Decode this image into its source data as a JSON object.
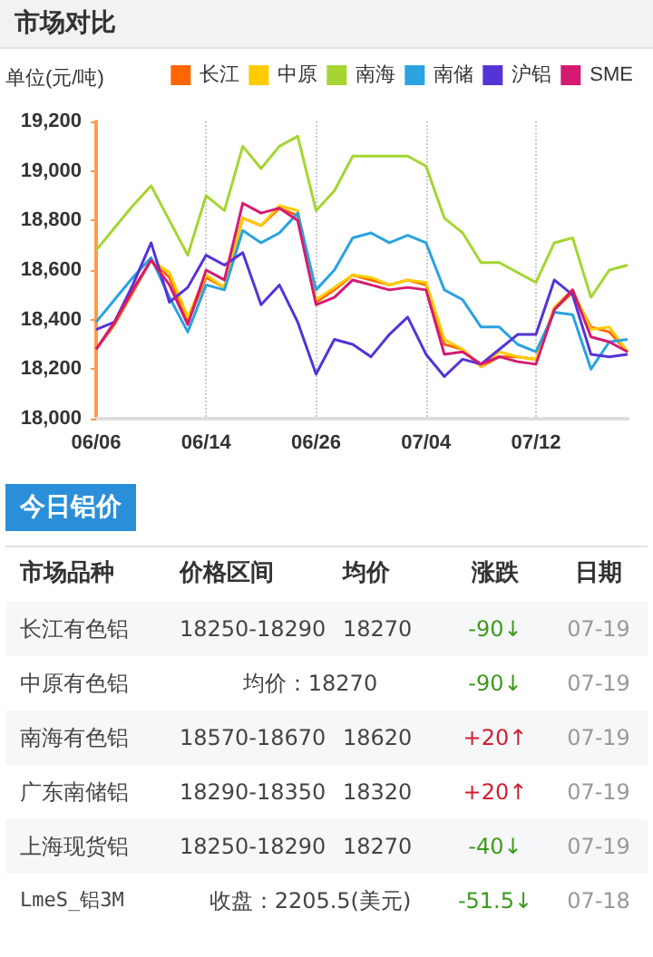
{
  "chart_data": {
    "type": "line",
    "title": "市场对比",
    "ylabel": "单位(元/吨)",
    "categories": [
      "06/06",
      null,
      null,
      null,
      null,
      null,
      "06/14",
      null,
      null,
      null,
      null,
      null,
      "06/26",
      null,
      null,
      null,
      null,
      null,
      "07/04",
      null,
      null,
      null,
      null,
      null,
      "07/12",
      null,
      null,
      null,
      null,
      null
    ],
    "series": [
      {
        "name": "长江",
        "color": "#ff6600",
        "values": [
          18280,
          18380,
          18510,
          18640,
          18570,
          18390,
          18570,
          18530,
          18810,
          18780,
          18850,
          18820,
          18470,
          18520,
          18580,
          18560,
          18540,
          18560,
          18540,
          18300,
          18280,
          18210,
          18250,
          18250,
          18240,
          18440,
          18510,
          18370,
          18350,
          18270
        ]
      },
      {
        "name": "中原",
        "color": "#ffcc00",
        "values": [
          null,
          null,
          18520,
          18640,
          18590,
          18410,
          18580,
          18530,
          18810,
          18780,
          18860,
          18840,
          18480,
          18530,
          18580,
          18570,
          18540,
          18560,
          18550,
          18320,
          18280,
          18210,
          18270,
          18250,
          18240,
          18450,
          18520,
          18360,
          18370,
          18270
        ]
      },
      {
        "name": "南海",
        "color": "#a5d531",
        "values": [
          18680,
          18770,
          18860,
          18940,
          18800,
          18660,
          18900,
          18840,
          19100,
          19010,
          19100,
          19140,
          18840,
          18920,
          19060,
          19060,
          19060,
          19060,
          19020,
          18810,
          18750,
          18630,
          18630,
          18590,
          18550,
          18710,
          18730,
          18490,
          18600,
          18620
        ]
      },
      {
        "name": "南储",
        "color": "#2aa3e0",
        "values": [
          18390,
          18480,
          18570,
          18650,
          18490,
          18350,
          18540,
          18520,
          18760,
          18710,
          18750,
          18830,
          18520,
          18600,
          18730,
          18750,
          18710,
          18740,
          18710,
          18520,
          18480,
          18370,
          18370,
          18300,
          18270,
          18430,
          18420,
          18200,
          18310,
          18320
        ]
      },
      {
        "name": "沪铝",
        "color": "#5533d6",
        "values": [
          18360,
          18390,
          18540,
          18710,
          18470,
          18530,
          18660,
          18620,
          18670,
          18460,
          18540,
          18390,
          18180,
          18320,
          18300,
          18250,
          18340,
          18410,
          18260,
          18170,
          18240,
          18220,
          18280,
          18340,
          18340,
          18560,
          18500,
          18260,
          18250,
          18260
        ]
      },
      {
        "name": "SME",
        "color": "#d41a72",
        "values": [
          18280,
          18390,
          18520,
          18640,
          18540,
          18380,
          18600,
          18560,
          18870,
          18830,
          18850,
          18800,
          18460,
          18490,
          18560,
          18540,
          18520,
          18530,
          18520,
          18260,
          18270,
          18220,
          18250,
          18230,
          18220,
          18440,
          18520,
          18330,
          18310,
          18270
        ]
      }
    ],
    "ylim": [
      18000,
      19200
    ],
    "yticks": [
      {
        "value": 18000,
        "label": "18,000"
      },
      {
        "value": 18200,
        "label": "18,200"
      },
      {
        "value": 18400,
        "label": "18,400"
      },
      {
        "value": 18600,
        "label": "18,600"
      },
      {
        "value": 18800,
        "label": "18,800"
      },
      {
        "value": 19000,
        "label": "19,000"
      },
      {
        "value": 19200,
        "label": "19,200"
      }
    ],
    "grid": "x",
    "legend": "top right",
    "annotations": [
      "今日铝价",
      "市场品种",
      "价格区间",
      "均价",
      "涨跌",
      "日期",
      "长江有色铝",
      "18250-18290",
      "18270",
      "-90↓",
      "07-19",
      "中原有色铝",
      "均价：18270",
      "-90↓",
      "07-19",
      "南海有色铝",
      "18570-18670",
      "18620",
      "+20↑",
      "07-19",
      "广东南储铝",
      "18290-18350",
      "18320",
      "+20↑",
      "07-19",
      "上海现货铝",
      "18250-18290",
      "18270",
      "-40↓",
      "07-19",
      "LmeS_铝3M",
      "收盘：2205.5(美元)",
      "-51.5↓",
      "07-18"
    ]
  }
}
